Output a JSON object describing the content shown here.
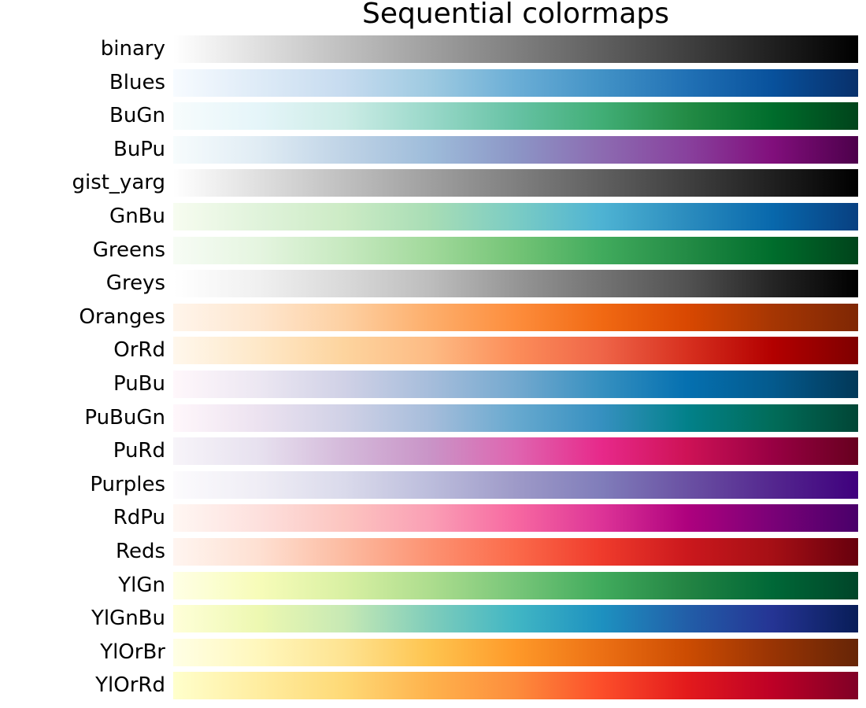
{
  "chart_data": {
    "type": "colormap_strips",
    "title": "Sequential colormaps",
    "axis": "off",
    "colormaps": [
      {
        "name": "binary",
        "colors": [
          "#ffffff",
          "#000000"
        ]
      },
      {
        "name": "Blues",
        "colors": [
          "#f7fbff",
          "#deebf7",
          "#c6dbef",
          "#9ecae1",
          "#6baed6",
          "#4292c6",
          "#2171b5",
          "#08519c",
          "#08306b"
        ]
      },
      {
        "name": "BuGn",
        "colors": [
          "#f7fcfd",
          "#e5f5f9",
          "#ccece6",
          "#99d8c9",
          "#66c2a4",
          "#41ae76",
          "#238b45",
          "#006d2c",
          "#00441b"
        ]
      },
      {
        "name": "BuPu",
        "colors": [
          "#f7fcfd",
          "#e0ecf4",
          "#bfd3e6",
          "#9ebcda",
          "#8c96c6",
          "#8c6bb1",
          "#88419d",
          "#810f7c",
          "#4d004b"
        ]
      },
      {
        "name": "gist_yarg",
        "colors": [
          "#ffffff",
          "#000000"
        ]
      },
      {
        "name": "GnBu",
        "colors": [
          "#f7fcf0",
          "#e0f3db",
          "#ccebc5",
          "#a8ddb5",
          "#7bccc4",
          "#4eb3d3",
          "#2b8cbe",
          "#0868ac",
          "#084081"
        ]
      },
      {
        "name": "Greens",
        "colors": [
          "#f7fcf5",
          "#e5f5e0",
          "#c7e9c0",
          "#a1d99b",
          "#74c476",
          "#41ab5d",
          "#238b45",
          "#006d2c",
          "#00441b"
        ]
      },
      {
        "name": "Greys",
        "colors": [
          "#ffffff",
          "#f0f0f0",
          "#d9d9d9",
          "#bdbdbd",
          "#969696",
          "#737373",
          "#525252",
          "#252525",
          "#000000"
        ]
      },
      {
        "name": "Oranges",
        "colors": [
          "#fff5eb",
          "#fee6ce",
          "#fdd0a2",
          "#fdae6b",
          "#fd8d3c",
          "#f16913",
          "#d94801",
          "#a63603",
          "#7f2704"
        ]
      },
      {
        "name": "OrRd",
        "colors": [
          "#fff7ec",
          "#fee8c8",
          "#fdd49e",
          "#fdbb84",
          "#fc8d59",
          "#ef6548",
          "#d7301f",
          "#b30000",
          "#7f0000"
        ]
      },
      {
        "name": "PuBu",
        "colors": [
          "#fff7fb",
          "#ece7f2",
          "#d0d1e6",
          "#a6bddb",
          "#74a9cf",
          "#3690c0",
          "#0570b0",
          "#045a8d",
          "#023858"
        ]
      },
      {
        "name": "PuBuGn",
        "colors": [
          "#fff7fb",
          "#ece2f0",
          "#d0d1e6",
          "#a6bddb",
          "#67a9cf",
          "#3690c0",
          "#02818a",
          "#016c59",
          "#014636"
        ]
      },
      {
        "name": "PuRd",
        "colors": [
          "#f7f4f9",
          "#e7e1ef",
          "#d4b9da",
          "#c994c7",
          "#df65b0",
          "#e7298a",
          "#ce1256",
          "#980043",
          "#67001f"
        ]
      },
      {
        "name": "Purples",
        "colors": [
          "#fcfbfd",
          "#efedf5",
          "#dadaeb",
          "#bcbddc",
          "#9e9ac8",
          "#807dba",
          "#6a51a3",
          "#54278f",
          "#3f007d"
        ]
      },
      {
        "name": "RdPu",
        "colors": [
          "#fff7f3",
          "#fde0dd",
          "#fcc5c0",
          "#fa9fb5",
          "#f768a1",
          "#dd3497",
          "#ae017e",
          "#7a0177",
          "#49006a"
        ]
      },
      {
        "name": "Reds",
        "colors": [
          "#fff5f0",
          "#fee0d2",
          "#fcbba1",
          "#fc9272",
          "#fb6a4a",
          "#ef3b2c",
          "#cb181d",
          "#a50f15",
          "#67000d"
        ]
      },
      {
        "name": "YlGn",
        "colors": [
          "#ffffe5",
          "#f7fcb9",
          "#d9f0a3",
          "#addd8e",
          "#78c679",
          "#41ab5d",
          "#238443",
          "#006837",
          "#004529"
        ]
      },
      {
        "name": "YlGnBu",
        "colors": [
          "#ffffd9",
          "#edf8b1",
          "#c7e9b4",
          "#7fcdbb",
          "#41b6c4",
          "#1d91c0",
          "#225ea8",
          "#253494",
          "#081d58"
        ]
      },
      {
        "name": "YlOrBr",
        "colors": [
          "#ffffe5",
          "#fff7bc",
          "#fee391",
          "#fec44f",
          "#fe9929",
          "#ec7014",
          "#cc4c02",
          "#993404",
          "#662506"
        ]
      },
      {
        "name": "YlOrRd",
        "colors": [
          "#ffffcc",
          "#ffeda0",
          "#fed976",
          "#feb24c",
          "#fd8d3c",
          "#fc4e2a",
          "#e31a1c",
          "#bd0026",
          "#800026"
        ]
      }
    ]
  }
}
